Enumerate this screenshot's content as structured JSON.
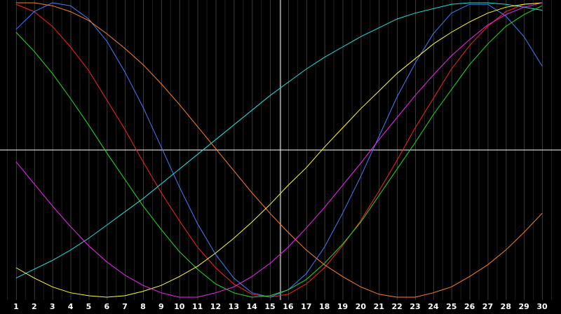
{
  "chart_data": {
    "type": "line",
    "categories": [
      "1",
      "2",
      "3",
      "4",
      "5",
      "6",
      "7",
      "8",
      "9",
      "10",
      "11",
      "12",
      "13",
      "14",
      "15",
      "16",
      "17",
      "18",
      "19",
      "20",
      "21",
      "22",
      "23",
      "24",
      "25",
      "26",
      "27",
      "28",
      "29",
      "30"
    ],
    "ylim": [
      -1,
      1
    ],
    "grid": true,
    "series": [
      {
        "color": "#ff2020",
        "values": [
          0.99,
          0.94,
          0.84,
          0.7,
          0.54,
          0.34,
          0.14,
          -0.08,
          -0.29,
          -0.48,
          -0.66,
          -0.8,
          -0.91,
          -0.98,
          -1.0,
          -0.98,
          -0.91,
          -0.8,
          -0.65,
          -0.48,
          -0.28,
          -0.07,
          0.15,
          0.35,
          0.55,
          0.71,
          0.84,
          0.94,
          0.99,
          1.0
        ]
      },
      {
        "color": "#3f7fff",
        "values": [
          0.82,
          0.94,
          1.0,
          0.98,
          0.89,
          0.74,
          0.53,
          0.29,
          0.02,
          -0.25,
          -0.5,
          -0.71,
          -0.87,
          -0.97,
          -1.0,
          -0.95,
          -0.84,
          -0.66,
          -0.43,
          -0.18,
          0.09,
          0.36,
          0.59,
          0.79,
          0.93,
          0.99,
          0.99,
          0.91,
          0.77,
          0.57
        ]
      },
      {
        "color": "#20e020",
        "values": [
          0.8,
          0.67,
          0.52,
          0.35,
          0.17,
          -0.02,
          -0.2,
          -0.38,
          -0.54,
          -0.69,
          -0.81,
          -0.91,
          -0.97,
          -1.0,
          -0.99,
          -0.95,
          -0.88,
          -0.77,
          -0.64,
          -0.49,
          -0.31,
          -0.13,
          0.05,
          0.24,
          0.41,
          0.58,
          0.72,
          0.84,
          0.92,
          0.98
        ]
      },
      {
        "color": "#20e0e0",
        "values": [
          -0.87,
          -0.81,
          -0.75,
          -0.68,
          -0.6,
          -0.51,
          -0.42,
          -0.33,
          -0.23,
          -0.13,
          -0.03,
          0.07,
          0.17,
          0.27,
          0.37,
          0.46,
          0.55,
          0.63,
          0.7,
          0.77,
          0.83,
          0.89,
          0.93,
          0.96,
          0.99,
          1.0,
          1.0,
          0.99,
          0.97,
          0.95
        ]
      },
      {
        "color": "#ff8020",
        "values": [
          1.0,
          1.0,
          0.98,
          0.94,
          0.88,
          0.79,
          0.69,
          0.58,
          0.45,
          0.31,
          0.16,
          0.01,
          -0.14,
          -0.29,
          -0.43,
          -0.56,
          -0.68,
          -0.78,
          -0.86,
          -0.93,
          -0.98,
          -1.0,
          -1.0,
          -0.97,
          -0.93,
          -0.86,
          -0.78,
          -0.68,
          -0.56,
          -0.43
        ]
      },
      {
        "color": "#ffff20",
        "values": [
          -0.8,
          -0.87,
          -0.93,
          -0.97,
          -0.99,
          -1.0,
          -0.99,
          -0.96,
          -0.92,
          -0.86,
          -0.79,
          -0.7,
          -0.6,
          -0.49,
          -0.37,
          -0.24,
          -0.12,
          0.02,
          0.15,
          0.28,
          0.4,
          0.52,
          0.62,
          0.72,
          0.8,
          0.87,
          0.93,
          0.97,
          0.99,
          1.0
        ]
      },
      {
        "color": "#ff20ff",
        "values": [
          -0.08,
          -0.23,
          -0.38,
          -0.52,
          -0.65,
          -0.76,
          -0.85,
          -0.92,
          -0.97,
          -1.0,
          -1.0,
          -0.97,
          -0.93,
          -0.86,
          -0.77,
          -0.66,
          -0.53,
          -0.39,
          -0.24,
          -0.09,
          0.07,
          0.22,
          0.37,
          0.51,
          0.64,
          0.75,
          0.85,
          0.92,
          0.97,
          1.0
        ]
      }
    ]
  }
}
